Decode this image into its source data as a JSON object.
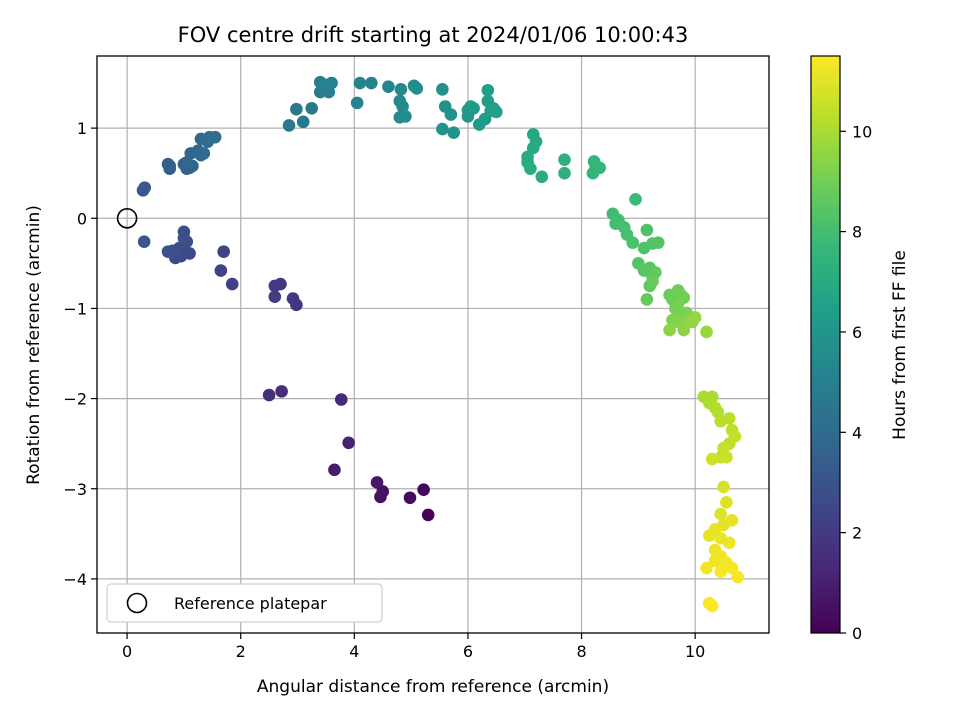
{
  "chart_data": {
    "type": "scatter",
    "title": "FOV centre drift starting at 2024/01/06 10:00:43",
    "xlabel": "Angular distance from reference (arcmin)",
    "ylabel": "Rotation from reference (arcmin)",
    "xlim": [
      -0.53,
      11.3
    ],
    "ylim": [
      -4.6,
      1.8
    ],
    "xticks": [
      0,
      2,
      4,
      6,
      8,
      10
    ],
    "yticks": [
      -4,
      -3,
      -2,
      -1,
      0,
      1
    ],
    "grid": true,
    "legend": {
      "placement": "lower-left",
      "label": "Reference platepar"
    },
    "reference_point": {
      "x": 0,
      "y": 0
    },
    "colorbar": {
      "label": "Hours from first FF file",
      "range": [
        0,
        11.5
      ],
      "ticks": [
        0,
        2,
        4,
        6,
        8,
        10
      ],
      "colormap": "viridis"
    },
    "series": [
      {
        "points": [
          {
            "x": 5.3,
            "y": -3.29,
            "h": 0.1
          },
          {
            "x": 5.22,
            "y": -3.01,
            "h": 0.2
          },
          {
            "x": 4.98,
            "y": -3.1,
            "h": 0.35
          },
          {
            "x": 4.5,
            "y": -3.03,
            "h": 0.5
          },
          {
            "x": 4.46,
            "y": -3.09,
            "h": 0.55
          },
          {
            "x": 4.4,
            "y": -2.93,
            "h": 0.7
          },
          {
            "x": 3.65,
            "y": -2.79,
            "h": 0.9
          },
          {
            "x": 3.9,
            "y": -2.49,
            "h": 1.1
          },
          {
            "x": 3.77,
            "y": -2.01,
            "h": 1.3
          },
          {
            "x": 2.72,
            "y": -1.92,
            "h": 1.5
          },
          {
            "x": 2.5,
            "y": -1.96,
            "h": 1.6
          },
          {
            "x": 2.98,
            "y": -0.96,
            "h": 1.8
          },
          {
            "x": 2.92,
            "y": -0.89,
            "h": 1.85
          },
          {
            "x": 2.7,
            "y": -0.73,
            "h": 1.95
          },
          {
            "x": 2.6,
            "y": -0.75,
            "h": 2.0
          },
          {
            "x": 2.6,
            "y": -0.87,
            "h": 2.05
          },
          {
            "x": 1.85,
            "y": -0.73,
            "h": 2.2
          },
          {
            "x": 1.7,
            "y": -0.37,
            "h": 2.3
          },
          {
            "x": 1.65,
            "y": -0.58,
            "h": 2.35
          },
          {
            "x": 1.1,
            "y": -0.39,
            "h": 2.5
          },
          {
            "x": 0.95,
            "y": -0.42,
            "h": 2.55
          },
          {
            "x": 0.85,
            "y": -0.44,
            "h": 2.6
          },
          {
            "x": 0.92,
            "y": -0.33,
            "h": 2.65
          },
          {
            "x": 1.0,
            "y": -0.3,
            "h": 2.7
          },
          {
            "x": 1.05,
            "y": -0.26,
            "h": 2.75
          },
          {
            "x": 1.0,
            "y": -0.22,
            "h": 2.8
          },
          {
            "x": 1.0,
            "y": -0.15,
            "h": 2.85
          },
          {
            "x": 0.8,
            "y": -0.36,
            "h": 2.9
          },
          {
            "x": 0.72,
            "y": -0.37,
            "h": 2.95
          },
          {
            "x": 0.3,
            "y": -0.26,
            "h": 3.05
          },
          {
            "x": 0.28,
            "y": 0.31,
            "h": 3.15
          },
          {
            "x": 0.31,
            "y": 0.34,
            "h": 3.2
          },
          {
            "x": 0.75,
            "y": 0.55,
            "h": 3.35
          },
          {
            "x": 0.72,
            "y": 0.6,
            "h": 3.4
          },
          {
            "x": 0.75,
            "y": 0.58,
            "h": 3.45
          },
          {
            "x": 1.05,
            "y": 0.55,
            "h": 3.55
          },
          {
            "x": 1.1,
            "y": 0.56,
            "h": 3.6
          },
          {
            "x": 1.0,
            "y": 0.6,
            "h": 3.65
          },
          {
            "x": 1.15,
            "y": 0.58,
            "h": 3.7
          },
          {
            "x": 1.05,
            "y": 0.62,
            "h": 3.75
          },
          {
            "x": 1.12,
            "y": 0.72,
            "h": 3.8
          },
          {
            "x": 1.3,
            "y": 0.7,
            "h": 3.85
          },
          {
            "x": 1.25,
            "y": 0.75,
            "h": 3.9
          },
          {
            "x": 1.35,
            "y": 0.72,
            "h": 3.95
          },
          {
            "x": 1.3,
            "y": 0.88,
            "h": 4.0
          },
          {
            "x": 1.45,
            "y": 0.9,
            "h": 4.05
          },
          {
            "x": 1.55,
            "y": 0.9,
            "h": 4.1
          },
          {
            "x": 1.42,
            "y": 0.85,
            "h": 4.15
          },
          {
            "x": 2.85,
            "y": 1.03,
            "h": 4.55
          },
          {
            "x": 3.1,
            "y": 1.07,
            "h": 4.6
          },
          {
            "x": 2.98,
            "y": 1.21,
            "h": 4.65
          },
          {
            "x": 3.25,
            "y": 1.22,
            "h": 4.7
          },
          {
            "x": 3.4,
            "y": 1.4,
            "h": 4.8
          },
          {
            "x": 3.48,
            "y": 1.45,
            "h": 4.85
          },
          {
            "x": 3.55,
            "y": 1.4,
            "h": 4.9
          },
          {
            "x": 3.4,
            "y": 1.51,
            "h": 4.95
          },
          {
            "x": 3.6,
            "y": 1.5,
            "h": 5.0
          },
          {
            "x": 3.52,
            "y": 1.48,
            "h": 5.05
          },
          {
            "x": 4.05,
            "y": 1.28,
            "h": 5.15
          },
          {
            "x": 4.1,
            "y": 1.5,
            "h": 5.2
          },
          {
            "x": 4.3,
            "y": 1.5,
            "h": 5.25
          },
          {
            "x": 4.6,
            "y": 1.46,
            "h": 5.35
          },
          {
            "x": 4.82,
            "y": 1.43,
            "h": 5.4
          },
          {
            "x": 4.8,
            "y": 1.3,
            "h": 5.45
          },
          {
            "x": 4.85,
            "y": 1.24,
            "h": 5.5
          },
          {
            "x": 4.8,
            "y": 1.12,
            "h": 5.55
          },
          {
            "x": 4.9,
            "y": 1.13,
            "h": 5.6
          },
          {
            "x": 5.05,
            "y": 1.47,
            "h": 5.65
          },
          {
            "x": 5.1,
            "y": 1.44,
            "h": 5.7
          },
          {
            "x": 5.55,
            "y": 1.43,
            "h": 5.8
          },
          {
            "x": 5.6,
            "y": 1.24,
            "h": 5.85
          },
          {
            "x": 5.7,
            "y": 1.15,
            "h": 5.9
          },
          {
            "x": 5.55,
            "y": 0.99,
            "h": 5.95
          },
          {
            "x": 5.75,
            "y": 0.95,
            "h": 6.0
          },
          {
            "x": 6.0,
            "y": 1.13,
            "h": 6.05
          },
          {
            "x": 6.0,
            "y": 1.2,
            "h": 6.1
          },
          {
            "x": 6.1,
            "y": 1.22,
            "h": 6.15
          },
          {
            "x": 6.05,
            "y": 1.24,
            "h": 6.2
          },
          {
            "x": 6.2,
            "y": 1.04,
            "h": 6.25
          },
          {
            "x": 6.3,
            "y": 1.1,
            "h": 6.3
          },
          {
            "x": 6.35,
            "y": 1.3,
            "h": 6.35
          },
          {
            "x": 6.4,
            "y": 1.19,
            "h": 6.4
          },
          {
            "x": 6.45,
            "y": 1.22,
            "h": 6.45
          },
          {
            "x": 6.35,
            "y": 1.42,
            "h": 6.5
          },
          {
            "x": 6.5,
            "y": 1.18,
            "h": 6.55
          },
          {
            "x": 7.15,
            "y": 0.93,
            "h": 6.8
          },
          {
            "x": 7.2,
            "y": 0.85,
            "h": 6.85
          },
          {
            "x": 7.15,
            "y": 0.78,
            "h": 6.9
          },
          {
            "x": 7.05,
            "y": 0.68,
            "h": 6.95
          },
          {
            "x": 7.05,
            "y": 0.62,
            "h": 7.0
          },
          {
            "x": 7.1,
            "y": 0.55,
            "h": 7.05
          },
          {
            "x": 7.3,
            "y": 0.46,
            "h": 7.1
          },
          {
            "x": 7.7,
            "y": 0.65,
            "h": 7.25
          },
          {
            "x": 7.7,
            "y": 0.5,
            "h": 7.3
          },
          {
            "x": 8.2,
            "y": 0.5,
            "h": 7.45
          },
          {
            "x": 8.25,
            "y": 0.58,
            "h": 7.5
          },
          {
            "x": 8.22,
            "y": 0.63,
            "h": 7.55
          },
          {
            "x": 8.32,
            "y": 0.56,
            "h": 7.6
          },
          {
            "x": 8.95,
            "y": 0.21,
            "h": 7.8
          },
          {
            "x": 8.55,
            "y": 0.05,
            "h": 7.9
          },
          {
            "x": 8.65,
            "y": -0.02,
            "h": 7.95
          },
          {
            "x": 8.6,
            "y": -0.06,
            "h": 8.0
          },
          {
            "x": 8.75,
            "y": -0.1,
            "h": 8.05
          },
          {
            "x": 8.8,
            "y": -0.18,
            "h": 8.1
          },
          {
            "x": 8.9,
            "y": -0.27,
            "h": 8.15
          },
          {
            "x": 9.15,
            "y": -0.13,
            "h": 8.2
          },
          {
            "x": 9.1,
            "y": -0.33,
            "h": 8.25
          },
          {
            "x": 9.25,
            "y": -0.28,
            "h": 8.3
          },
          {
            "x": 9.35,
            "y": -0.27,
            "h": 8.35
          },
          {
            "x": 9.0,
            "y": -0.5,
            "h": 8.4
          },
          {
            "x": 9.1,
            "y": -0.58,
            "h": 8.45
          },
          {
            "x": 9.2,
            "y": -0.55,
            "h": 8.5
          },
          {
            "x": 9.25,
            "y": -0.65,
            "h": 8.55
          },
          {
            "x": 9.3,
            "y": -0.6,
            "h": 8.6
          },
          {
            "x": 9.2,
            "y": -0.75,
            "h": 8.65
          },
          {
            "x": 9.15,
            "y": -0.9,
            "h": 8.7
          },
          {
            "x": 9.25,
            "y": -0.7,
            "h": 8.75
          },
          {
            "x": 9.55,
            "y": -0.85,
            "h": 8.8
          },
          {
            "x": 9.6,
            "y": -0.9,
            "h": 8.85
          },
          {
            "x": 9.7,
            "y": -0.8,
            "h": 8.9
          },
          {
            "x": 9.75,
            "y": -0.85,
            "h": 8.95
          },
          {
            "x": 9.8,
            "y": -0.88,
            "h": 9.0
          },
          {
            "x": 9.7,
            "y": -0.95,
            "h": 9.05
          },
          {
            "x": 9.65,
            "y": -1.0,
            "h": 9.1
          },
          {
            "x": 9.75,
            "y": -1.05,
            "h": 9.15
          },
          {
            "x": 9.85,
            "y": -1.05,
            "h": 9.2
          },
          {
            "x": 9.6,
            "y": -1.13,
            "h": 9.25
          },
          {
            "x": 9.7,
            "y": -1.15,
            "h": 9.3
          },
          {
            "x": 9.8,
            "y": -1.15,
            "h": 9.35
          },
          {
            "x": 9.9,
            "y": -1.13,
            "h": 9.4
          },
          {
            "x": 9.55,
            "y": -1.24,
            "h": 9.45
          },
          {
            "x": 9.8,
            "y": -1.24,
            "h": 9.5
          },
          {
            "x": 9.95,
            "y": -1.15,
            "h": 9.55
          },
          {
            "x": 10.0,
            "y": -1.1,
            "h": 9.6
          },
          {
            "x": 10.2,
            "y": -1.26,
            "h": 9.7
          },
          {
            "x": 10.15,
            "y": -1.98,
            "h": 10.0
          },
          {
            "x": 10.3,
            "y": -1.98,
            "h": 10.05
          },
          {
            "x": 10.25,
            "y": -2.05,
            "h": 10.1
          },
          {
            "x": 10.35,
            "y": -2.1,
            "h": 10.15
          },
          {
            "x": 10.4,
            "y": -2.15,
            "h": 10.2
          },
          {
            "x": 10.45,
            "y": -2.25,
            "h": 10.25
          },
          {
            "x": 10.6,
            "y": -2.22,
            "h": 10.3
          },
          {
            "x": 10.65,
            "y": -2.35,
            "h": 10.35
          },
          {
            "x": 10.6,
            "y": -2.5,
            "h": 10.4
          },
          {
            "x": 10.7,
            "y": -2.42,
            "h": 10.45
          },
          {
            "x": 10.5,
            "y": -2.55,
            "h": 10.5
          },
          {
            "x": 10.45,
            "y": -2.65,
            "h": 10.55
          },
          {
            "x": 10.55,
            "y": -2.65,
            "h": 10.6
          },
          {
            "x": 10.3,
            "y": -2.67,
            "h": 10.65
          },
          {
            "x": 10.5,
            "y": -2.98,
            "h": 10.8
          },
          {
            "x": 10.55,
            "y": -3.15,
            "h": 10.9
          },
          {
            "x": 10.45,
            "y": -3.28,
            "h": 10.95
          },
          {
            "x": 10.5,
            "y": -3.4,
            "h": 11.0
          },
          {
            "x": 10.65,
            "y": -3.35,
            "h": 11.05
          },
          {
            "x": 10.35,
            "y": -3.45,
            "h": 11.1
          },
          {
            "x": 10.25,
            "y": -3.52,
            "h": 11.12
          },
          {
            "x": 10.45,
            "y": -3.55,
            "h": 11.15
          },
          {
            "x": 10.6,
            "y": -3.6,
            "h": 11.18
          },
          {
            "x": 10.35,
            "y": -3.68,
            "h": 11.2
          },
          {
            "x": 10.45,
            "y": -3.75,
            "h": 11.25
          },
          {
            "x": 10.35,
            "y": -3.8,
            "h": 11.28
          },
          {
            "x": 10.55,
            "y": -3.82,
            "h": 11.3
          },
          {
            "x": 10.2,
            "y": -3.88,
            "h": 11.32
          },
          {
            "x": 10.65,
            "y": -3.88,
            "h": 11.35
          },
          {
            "x": 10.45,
            "y": -3.92,
            "h": 11.38
          },
          {
            "x": 10.75,
            "y": -3.98,
            "h": 11.4
          },
          {
            "x": 10.25,
            "y": -4.27,
            "h": 11.45
          },
          {
            "x": 10.3,
            "y": -4.3,
            "h": 11.5
          }
        ]
      }
    ]
  }
}
